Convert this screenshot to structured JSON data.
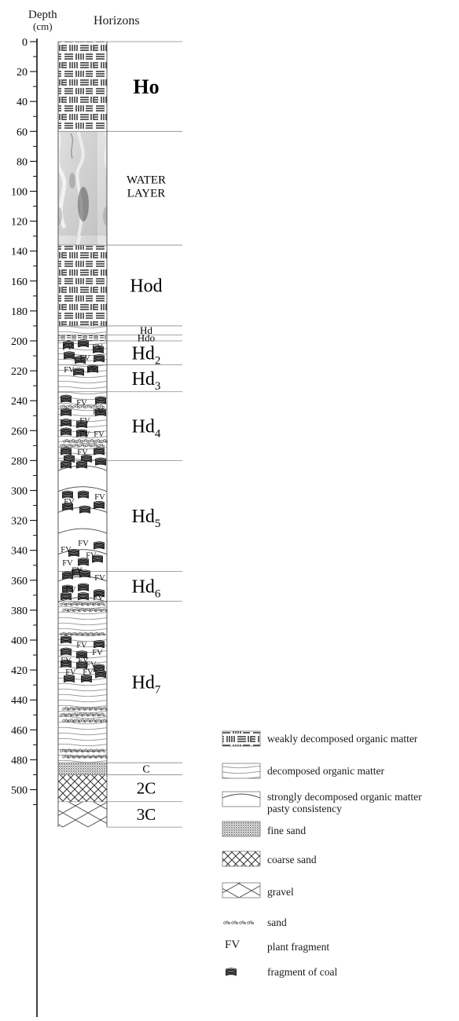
{
  "header": {
    "depth_label": "Depth",
    "depth_unit": "(cm)",
    "horizons_label": "Horizons"
  },
  "depth_axis": {
    "ticks": [
      0,
      20,
      40,
      60,
      80,
      100,
      120,
      140,
      160,
      180,
      200,
      220,
      240,
      260,
      280,
      300,
      320,
      340,
      360,
      380,
      400,
      420,
      440,
      460,
      480,
      500
    ],
    "labels": [
      "0",
      "20",
      "40",
      "60",
      "80",
      "100",
      "120",
      "140",
      "160",
      "180",
      "200",
      "220",
      "240",
      "260",
      "280",
      "300",
      "320",
      "340",
      "360",
      "380",
      "400",
      "420",
      "440",
      "460",
      "480",
      "500"
    ],
    "minor_step": 10
  },
  "horizons": [
    {
      "name": "Ho",
      "sub": "",
      "top": 0,
      "bottom": 60,
      "pattern": "weakly",
      "bold": true
    },
    {
      "name": "WATER",
      "name2": "LAYER",
      "sub": "",
      "top": 60,
      "bottom": 136,
      "pattern": "water"
    },
    {
      "name": "Hod",
      "sub": "",
      "top": 136,
      "bottom": 190,
      "pattern": "weakly"
    },
    {
      "name": "Hd",
      "sub": "",
      "top": 190,
      "bottom": 196,
      "pattern": "decomposed"
    },
    {
      "name": "Hdo",
      "sub": "",
      "top": 196,
      "bottom": 200,
      "pattern": "weakly-thin"
    },
    {
      "name": "Hd",
      "sub": "2",
      "top": 200,
      "bottom": 216,
      "pattern": "decomposed"
    },
    {
      "name": "Hd",
      "sub": "3",
      "top": 216,
      "bottom": 234,
      "pattern": "decomposed"
    },
    {
      "name": "Hd",
      "sub": "4",
      "top": 234,
      "bottom": 280,
      "pattern": "decomposed"
    },
    {
      "name": "Hd",
      "sub": "5",
      "top": 280,
      "bottom": 354,
      "pattern": "strongly"
    },
    {
      "name": "Hd",
      "sub": "6",
      "top": 354,
      "bottom": 374,
      "pattern": "strongly"
    },
    {
      "name": "Hd",
      "sub": "7",
      "top": 374,
      "bottom": 482,
      "pattern": "decomposed"
    },
    {
      "name": "C",
      "sub": "",
      "top": 482,
      "bottom": 490,
      "pattern": "fine-sand"
    },
    {
      "name": "2C",
      "sub": "",
      "top": 490,
      "bottom": 508,
      "pattern": "coarse-sand"
    },
    {
      "name": "3C",
      "sub": "",
      "top": 508,
      "bottom": 525,
      "pattern": "gravel"
    }
  ],
  "inclusions": {
    "fv_label": "FV"
  },
  "legend": [
    {
      "key": "weakly",
      "label": "weakly decomposed organic matter"
    },
    {
      "key": "decomposed",
      "label": "decomposed organic matter"
    },
    {
      "key": "strongly",
      "label": "strongly decomposed organic matter",
      "label2": "pasty consistency"
    },
    {
      "key": "fine-sand",
      "label": "fine sand"
    },
    {
      "key": "coarse-sand",
      "label": "coarse sand"
    },
    {
      "key": "gravel",
      "label": "gravel"
    },
    {
      "key": "sand",
      "label": "sand"
    },
    {
      "key": "fv",
      "symbol": "FV",
      "label": "plant fragment"
    },
    {
      "key": "coal",
      "label": "fragment of coal"
    }
  ]
}
